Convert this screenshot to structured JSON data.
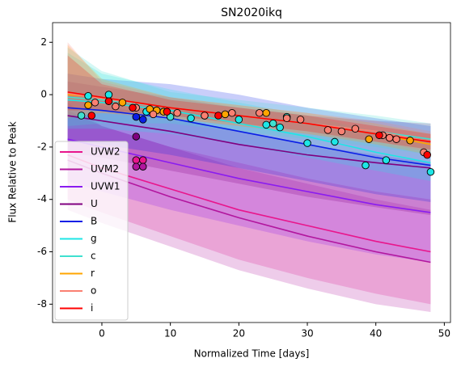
{
  "chart_data": {
    "type": "line",
    "title": "SN2020ikq",
    "xlabel": "Normalized Time [days]",
    "ylabel": "Flux Relative to Peak",
    "xlim": [
      -7.2,
      50.9
    ],
    "ylim": [
      -8.7,
      2.75
    ],
    "xticks": [
      0,
      10,
      20,
      30,
      40,
      50
    ],
    "yticks": [
      -8,
      -6,
      -4,
      -2,
      0,
      2
    ],
    "legend": "lower left",
    "x": [
      -5,
      0,
      10,
      20,
      30,
      40,
      48
    ],
    "series": [
      {
        "name": "UVW2",
        "color": "#e8168c",
        "values": [
          -2.3,
          -2.8,
          -3.6,
          -4.4,
          -5.0,
          -5.6,
          -6.0
        ],
        "lower": [
          -4.0,
          -4.5,
          -5.4,
          -6.3,
          -7.0,
          -7.6,
          -8.0
        ],
        "upper": [
          -0.3,
          -1.2,
          -2.0,
          -2.6,
          -3.2,
          -3.7,
          -4.0
        ],
        "obs_x": [
          5,
          6
        ],
        "obs_y": [
          -2.5,
          -2.5
        ]
      },
      {
        "name": "UVM2",
        "color": "#b2169e",
        "values": [
          -2.5,
          -3.0,
          -3.9,
          -4.7,
          -5.4,
          -6.0,
          -6.4
        ],
        "lower": [
          -4.4,
          -4.9,
          -5.8,
          -6.7,
          -7.4,
          -8.0,
          -8.3
        ],
        "upper": [
          -0.6,
          -1.2,
          -2.0,
          -2.8,
          -3.4,
          -4.0,
          -4.4
        ],
        "obs_x": [
          5,
          6
        ],
        "obs_y": [
          -2.75,
          -2.75
        ]
      },
      {
        "name": "UVW1",
        "color": "#8a1cf0",
        "values": [
          -1.7,
          -2.0,
          -2.6,
          -3.2,
          -3.7,
          -4.2,
          -4.5
        ],
        "lower": [
          -3.3,
          -3.7,
          -4.4,
          -5.0,
          -5.6,
          -6.1,
          -6.4
        ],
        "upper": [
          -0.2,
          -0.4,
          -0.9,
          -1.4,
          -1.9,
          -2.3,
          -2.6
        ],
        "obs_x": [],
        "obs_y": []
      },
      {
        "name": "U",
        "color": "#800080",
        "values": [
          -0.8,
          -1.0,
          -1.4,
          -1.9,
          -2.3,
          -2.6,
          -2.8
        ],
        "lower": [
          -2.2,
          -2.4,
          -2.9,
          -3.4,
          -3.9,
          -4.3,
          -4.6
        ],
        "upper": [
          0.5,
          0.3,
          -0.1,
          -0.5,
          -0.8,
          -1.0,
          -1.1
        ],
        "obs_x": [
          5
        ],
        "obs_y": [
          -1.6
        ]
      },
      {
        "name": "B",
        "color": "#0a1ee6",
        "values": [
          -0.5,
          -0.6,
          -0.9,
          -1.4,
          -1.9,
          -2.4,
          -2.7
        ],
        "lower": [
          -1.8,
          -1.9,
          -2.3,
          -2.8,
          -3.3,
          -3.8,
          -4.1
        ],
        "upper": [
          0.8,
          0.6,
          0.4,
          0.0,
          -0.5,
          -0.9,
          -1.2
        ],
        "obs_x": [
          5,
          6
        ],
        "obs_y": [
          -0.85,
          -0.95
        ]
      },
      {
        "name": "g",
        "color": "#1ee6e6",
        "values": [
          -0.2,
          -0.3,
          -0.6,
          -1.1,
          -1.6,
          -2.2,
          -2.6
        ],
        "lower": [
          -1.3,
          -1.3,
          -1.5,
          -1.9,
          -2.4,
          -2.9,
          -3.3
        ],
        "upper": [
          1.6,
          0.8,
          0.2,
          -0.3,
          -0.8,
          -1.4,
          -1.8
        ],
        "obs_x": [
          -2,
          1,
          6.5,
          13,
          20,
          24,
          26,
          30,
          34,
          38.5,
          41.5,
          48
        ],
        "obs_y": [
          -0.05,
          0.0,
          -0.65,
          -0.9,
          -0.95,
          -1.15,
          -1.25,
          -1.85,
          -1.8,
          -2.7,
          -2.5,
          -2.95
        ]
      },
      {
        "name": "c",
        "color": "#40e0d0",
        "values": [
          -0.1,
          -0.2,
          -0.5,
          -0.8,
          -1.1,
          -1.4,
          -1.7
        ],
        "lower": [
          -1.2,
          -1.1,
          -1.1,
          -1.4,
          -1.7,
          -2.0,
          -2.3
        ],
        "upper": [
          1.8,
          0.9,
          0.1,
          -0.2,
          -0.5,
          -0.8,
          -1.1
        ],
        "obs_x": [
          -3,
          10,
          15,
          25,
          27
        ],
        "obs_y": [
          -0.8,
          -0.85,
          -0.8,
          -1.1,
          -0.85
        ]
      },
      {
        "name": "r",
        "color": "#ffa500",
        "values": [
          0.0,
          -0.1,
          -0.5,
          -0.8,
          -1.1,
          -1.5,
          -1.9
        ],
        "lower": [
          -0.9,
          -0.7,
          -0.9,
          -1.2,
          -1.5,
          -1.9,
          -2.3
        ],
        "upper": [
          1.9,
          0.6,
          -0.1,
          -0.4,
          -0.7,
          -1.1,
          -1.5
        ],
        "obs_x": [
          -2,
          3,
          7,
          8,
          9,
          18,
          24,
          39,
          45
        ],
        "obs_y": [
          -0.4,
          -0.3,
          -0.55,
          -0.6,
          -0.65,
          -0.75,
          -0.7,
          -1.7,
          -1.75
        ]
      },
      {
        "name": "o",
        "color": "#fa8072",
        "values": [
          0.05,
          -0.15,
          -0.5,
          -0.8,
          -1.1,
          -1.4,
          -1.8
        ],
        "lower": [
          -0.8,
          -0.7,
          -0.9,
          -1.2,
          -1.5,
          -1.8,
          -2.2
        ],
        "upper": [
          2.0,
          0.5,
          -0.1,
          -0.4,
          -0.7,
          -1.0,
          -1.4
        ],
        "obs_x": [
          -1,
          2,
          5,
          7.5,
          11,
          15,
          19,
          23,
          27,
          29,
          33,
          35,
          37,
          41,
          42,
          43,
          47
        ],
        "obs_y": [
          -0.3,
          -0.45,
          -0.5,
          -0.75,
          -0.7,
          -0.8,
          -0.7,
          -0.7,
          -0.9,
          -0.95,
          -1.35,
          -1.4,
          -1.3,
          -1.55,
          -1.65,
          -1.7,
          -2.2
        ]
      },
      {
        "name": "i",
        "color": "#ff0000",
        "values": [
          0.1,
          -0.1,
          -0.5,
          -0.8,
          -1.1,
          -1.5,
          -1.8
        ],
        "lower": [
          -0.6,
          -0.6,
          -0.8,
          -1.1,
          -1.4,
          -1.8,
          -2.1
        ],
        "upper": [
          1.5,
          0.4,
          -0.2,
          -0.5,
          -0.8,
          -1.2,
          -1.5
        ],
        "obs_x": [
          -1.5,
          1,
          4.5,
          9.5,
          17,
          40.5,
          47.5
        ],
        "obs_y": [
          -0.8,
          -0.25,
          -0.5,
          -0.65,
          -0.8,
          -1.55,
          -2.3
        ]
      }
    ]
  }
}
